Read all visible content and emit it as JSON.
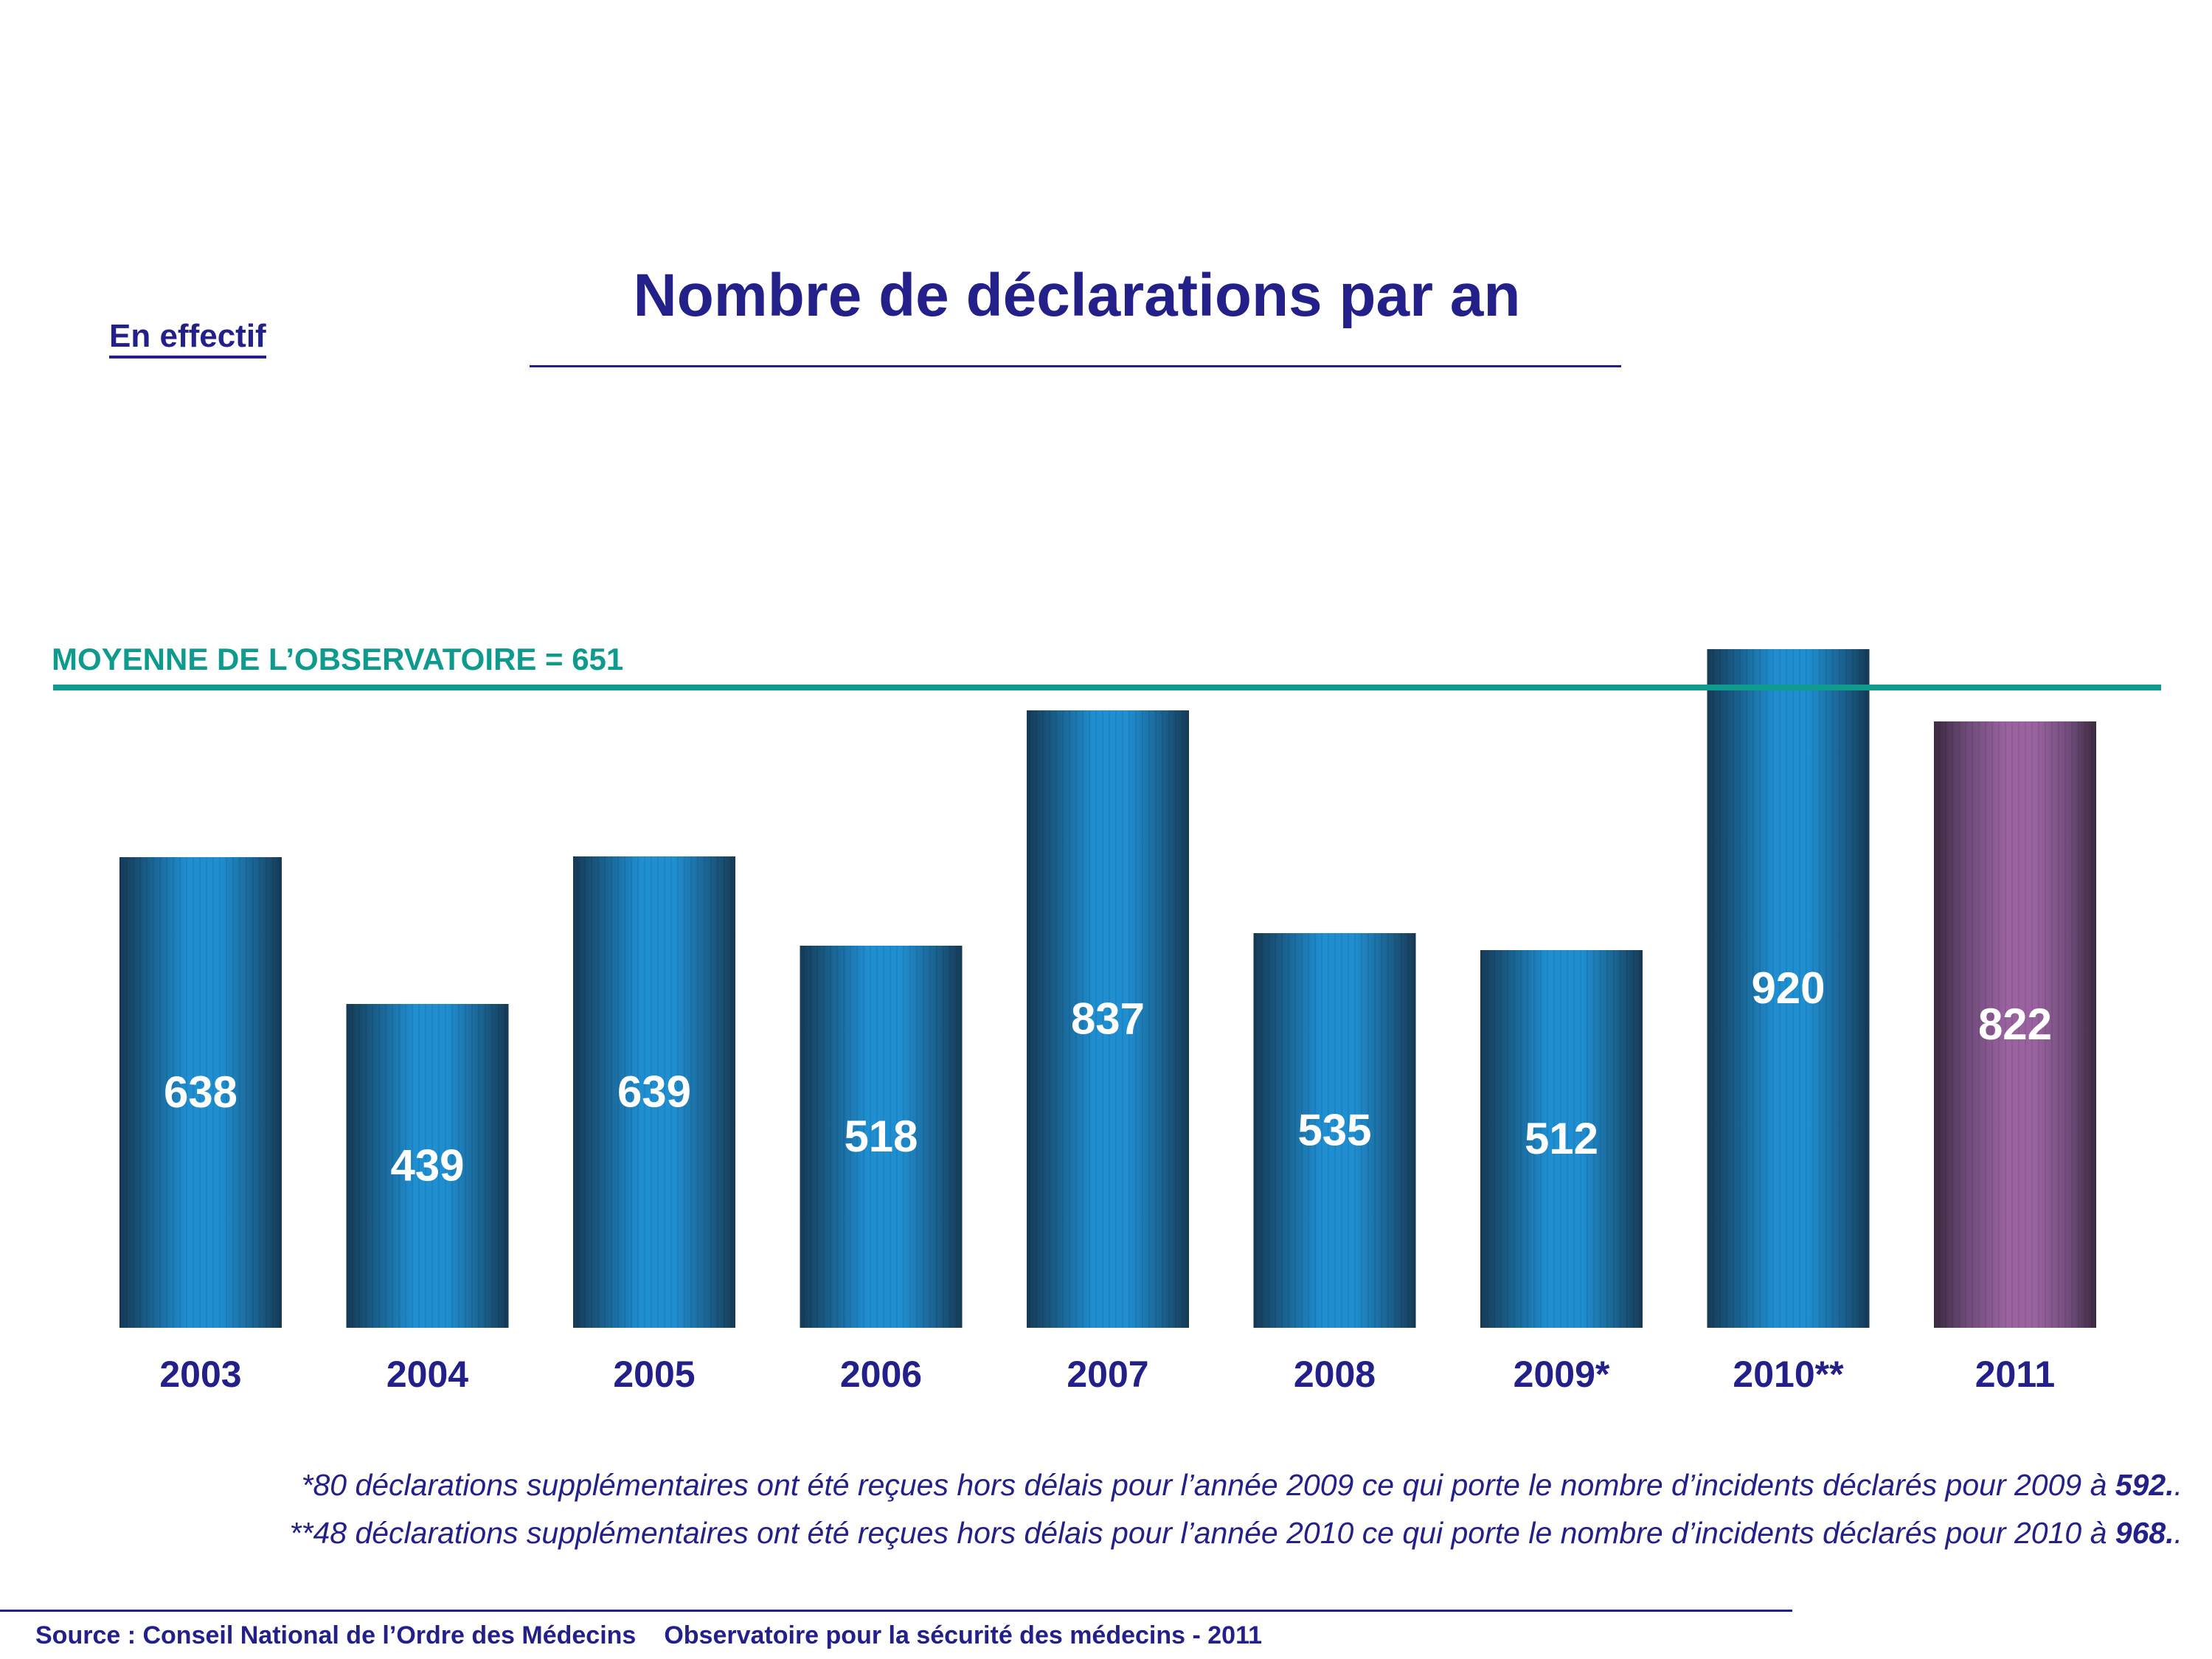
{
  "chart_data": {
    "type": "bar",
    "title": "Nombre de déclarations par an",
    "unit_label": "En effectif",
    "categories": [
      "2003",
      "2004",
      "2005",
      "2006",
      "2007",
      "2008",
      "2009*",
      "2010**",
      "2011"
    ],
    "values": [
      638,
      439,
      639,
      518,
      837,
      535,
      512,
      920,
      822
    ],
    "highlight_category": "2011",
    "reference_line": {
      "label": "MOYENNE DE L’OBSERVATOIRE = 651",
      "value": 651
    },
    "ylim": [
      0,
      1000
    ],
    "xlabel": "",
    "ylabel": "",
    "grid": false,
    "colors": {
      "bar": "#1f8fd2",
      "bar_edge": "#163a55",
      "highlight": "#9a63a0",
      "highlight_edge": "#3b2a40",
      "reference": "#0f9a8e",
      "text": "#23208a"
    }
  },
  "notes": [
    {
      "text": "*80 déclarations supplémentaires ont été reçues hors délais pour l’année 2009 ce qui porte le nombre d’incidents déclarés pour 2009 à ",
      "value": "592.",
      "tail": "."
    },
    {
      "text": "**48 déclarations supplémentaires ont été reçues hors délais pour l’année 2010 ce qui porte le nombre d’incidents déclarés pour 2010 à ",
      "value": "968.",
      "tail": "."
    }
  ],
  "footer": {
    "source": "Source : Conseil National de l’Ordre des Médecins",
    "observatory": "Observatoire pour la sécurité des médecins - 2011"
  }
}
